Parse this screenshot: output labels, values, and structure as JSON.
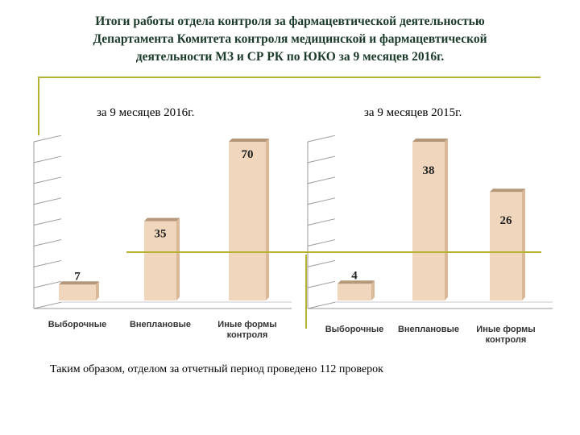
{
  "header": {
    "title_lines": [
      "Итоги работы отдела контроля за фармацевтической деятельностью",
      "Департамента Комитета контроля медицинской  и фармацевтической",
      "деятельности  МЗ и СР РК по ЮКО  за 9 месяцев  2016г."
    ]
  },
  "colors": {
    "bar_face": "#f0d6bc",
    "bar_top": "#b5977a",
    "bar_side": "#d9b998",
    "grid": "#9a9a9a",
    "accent_line": "#b8b232"
  },
  "chart_data": [
    {
      "type": "bar",
      "title": "за 9 месяцев  2016г.",
      "categories": [
        "Выборочные",
        "Внеплановые",
        "Иные формы\nконтроля"
      ],
      "values": [
        7,
        35,
        70
      ],
      "ylim": [
        0,
        70
      ],
      "grid": true
    },
    {
      "type": "bar",
      "title": "за 9 месяцев  2015г.",
      "categories": [
        "Выборочные",
        "Внеплановые",
        "Иные формы\nконтроля"
      ],
      "values": [
        4,
        38,
        26
      ],
      "ylim": [
        0,
        38
      ],
      "grid": true
    }
  ],
  "footer": {
    "text": "Таким  образом, отделом за отчетный период  проведено  112 проверок"
  }
}
